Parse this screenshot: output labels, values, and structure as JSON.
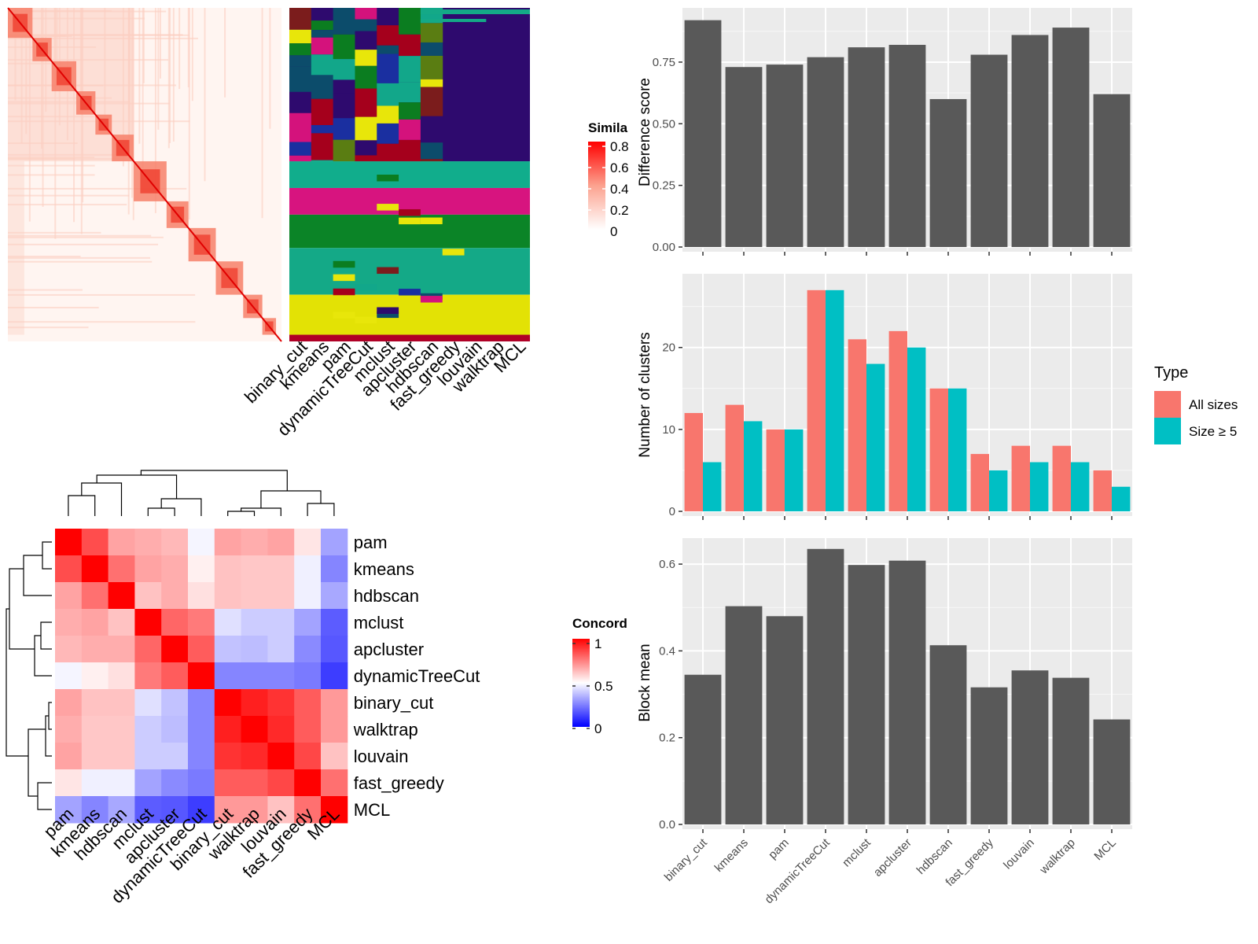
{
  "methods": [
    "binary_cut",
    "kmeans",
    "pam",
    "dynamicTreeCut",
    "mclust",
    "apcluster",
    "hdbscan",
    "fast_greedy",
    "louvain",
    "walktrap",
    "MCL"
  ],
  "similarity_legend": {
    "title": "Simila",
    "ticks": [
      "0.8",
      "0.6",
      "0.4",
      "0.2",
      "0"
    ]
  },
  "concordance_legend": {
    "title": "Concord",
    "ticks": [
      "1",
      "0.5",
      "0"
    ]
  },
  "type_legend": {
    "title": "Type",
    "items": [
      {
        "label": "All sizes",
        "color": "#F8766D"
      },
      {
        "label": "Size ≥ 5",
        "color": "#00BFC4"
      }
    ]
  },
  "concordance_order": [
    "pam",
    "kmeans",
    "hdbscan",
    "mclust",
    "apcluster",
    "dynamicTreeCut",
    "binary_cut",
    "walktrap",
    "louvain",
    "fast_greedy",
    "MCL"
  ],
  "chart_data": [
    {
      "type": "bar",
      "ylabel": "Difference score",
      "ylim": [
        0,
        0.97
      ],
      "yticks": [
        "0.00",
        "0.25",
        "0.50",
        "0.75"
      ],
      "categories": [
        "binary_cut",
        "kmeans",
        "pam",
        "dynamicTreeCut",
        "mclust",
        "apcluster",
        "hdbscan",
        "fast_greedy",
        "louvain",
        "walktrap",
        "MCL"
      ],
      "values": [
        0.92,
        0.73,
        0.74,
        0.77,
        0.81,
        0.82,
        0.6,
        0.78,
        0.86,
        0.89,
        0.62
      ],
      "color": "#595959"
    },
    {
      "type": "bar",
      "ylabel": "Number of clusters",
      "ylim": [
        0,
        29
      ],
      "yticks": [
        "0",
        "10",
        "20"
      ],
      "categories": [
        "binary_cut",
        "kmeans",
        "pam",
        "dynamicTreeCut",
        "mclust",
        "apcluster",
        "hdbscan",
        "fast_greedy",
        "louvain",
        "walktrap",
        "MCL"
      ],
      "series": [
        {
          "name": "All sizes",
          "values": [
            12,
            13,
            10,
            27,
            21,
            22,
            15,
            7,
            8,
            8,
            5
          ]
        },
        {
          "name": "Size ≥ 5",
          "values": [
            6,
            11,
            10,
            27,
            18,
            20,
            15,
            5,
            6,
            6,
            3
          ]
        }
      ]
    },
    {
      "type": "bar",
      "ylabel": "Block mean",
      "ylim": [
        0,
        0.66
      ],
      "yticks": [
        "0.0",
        "0.2",
        "0.4",
        "0.6"
      ],
      "categories": [
        "binary_cut",
        "kmeans",
        "pam",
        "dynamicTreeCut",
        "mclust",
        "apcluster",
        "hdbscan",
        "fast_greedy",
        "louvain",
        "walktrap",
        "MCL"
      ],
      "values": [
        0.345,
        0.503,
        0.48,
        0.635,
        0.598,
        0.608,
        0.413,
        0.316,
        0.355,
        0.338,
        0.242
      ],
      "color": "#595959"
    },
    {
      "type": "heatmap",
      "rows": [
        "pam",
        "kmeans",
        "hdbscan",
        "mclust",
        "apcluster",
        "dynamicTreeCut",
        "binary_cut",
        "walktrap",
        "louvain",
        "fast_greedy",
        "MCL"
      ],
      "columns": [
        "pam",
        "kmeans",
        "hdbscan",
        "mclust",
        "apcluster",
        "dynamicTreeCut",
        "binary_cut",
        "walktrap",
        "louvain",
        "fast_greedy",
        "MCL"
      ],
      "values": [
        [
          1.0,
          0.85,
          0.68,
          0.66,
          0.64,
          0.48,
          0.68,
          0.66,
          0.68,
          0.55,
          0.32
        ],
        [
          0.85,
          1.0,
          0.78,
          0.68,
          0.66,
          0.53,
          0.62,
          0.61,
          0.61,
          0.47,
          0.26
        ],
        [
          0.68,
          0.78,
          1.0,
          0.62,
          0.66,
          0.56,
          0.62,
          0.61,
          0.61,
          0.47,
          0.33
        ],
        [
          0.66,
          0.68,
          0.62,
          1.0,
          0.8,
          0.76,
          0.44,
          0.4,
          0.4,
          0.32,
          0.18
        ],
        [
          0.64,
          0.66,
          0.66,
          0.8,
          1.0,
          0.82,
          0.38,
          0.37,
          0.4,
          0.27,
          0.17
        ],
        [
          0.48,
          0.53,
          0.56,
          0.76,
          0.82,
          1.0,
          0.26,
          0.26,
          0.26,
          0.24,
          0.12
        ],
        [
          0.68,
          0.62,
          0.62,
          0.44,
          0.38,
          0.26,
          1.0,
          0.94,
          0.9,
          0.82,
          0.7
        ],
        [
          0.66,
          0.61,
          0.61,
          0.4,
          0.37,
          0.26,
          0.94,
          1.0,
          0.92,
          0.82,
          0.7
        ],
        [
          0.68,
          0.61,
          0.61,
          0.4,
          0.4,
          0.26,
          0.9,
          0.92,
          1.0,
          0.86,
          0.62
        ],
        [
          0.55,
          0.47,
          0.47,
          0.32,
          0.27,
          0.24,
          0.82,
          0.82,
          0.86,
          1.0,
          0.78
        ],
        [
          0.32,
          0.26,
          0.33,
          0.18,
          0.17,
          0.12,
          0.7,
          0.7,
          0.62,
          0.78,
          1.0
        ]
      ]
    }
  ]
}
